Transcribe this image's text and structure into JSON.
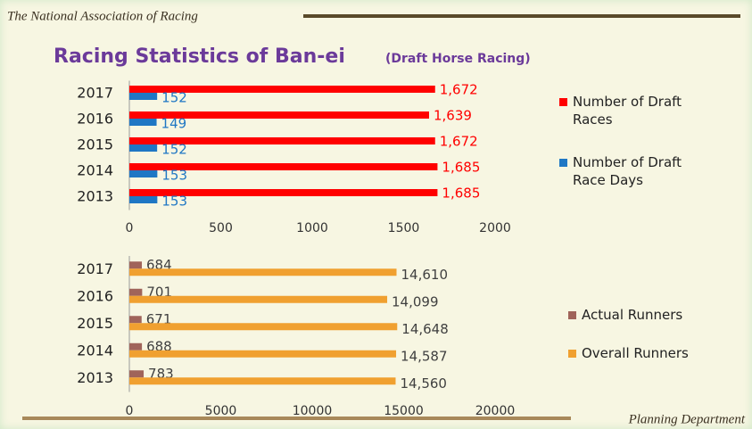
{
  "header": "The National Association of Racing",
  "title": "Racing Statistics of Ban-ei",
  "subtitle": "(Draft Horse Racing)",
  "footer": "Planning Department",
  "chart_data": [
    {
      "type": "bar",
      "orientation": "horizontal",
      "categories": [
        "2017",
        "2016",
        "2015",
        "2014",
        "2013"
      ],
      "series": [
        {
          "name": "Number of Draft Races",
          "color": "#ff0000",
          "label_color": "#ff0000",
          "values": [
            1672,
            1639,
            1672,
            1685,
            1685
          ],
          "value_labels": [
            "1,672",
            "1,639",
            "1,672",
            "1,685",
            "1,685"
          ]
        },
        {
          "name": "Number of Draft Race Days",
          "color": "#1f77c4",
          "label_color": "#1f77c4",
          "values": [
            152,
            149,
            152,
            153,
            153
          ]
        }
      ],
      "xlim": [
        0,
        2000
      ],
      "xticks": [
        0,
        500,
        1000,
        1500,
        2000
      ],
      "grid": false
    },
    {
      "type": "bar",
      "orientation": "horizontal",
      "categories": [
        "2017",
        "2016",
        "2015",
        "2014",
        "2013"
      ],
      "series": [
        {
          "name": "Actual Runners",
          "color": "#a0645a",
          "label_color": "#404040",
          "values": [
            684,
            701,
            671,
            688,
            783
          ]
        },
        {
          "name": "Overall Runners",
          "color": "#f0a030",
          "label_color": "#404040",
          "values": [
            14610,
            14099,
            14648,
            14587,
            14560
          ],
          "value_labels": [
            "14,610",
            "14,099",
            "14,648",
            "14,587",
            "14,560"
          ]
        }
      ],
      "xlim": [
        0,
        20000
      ],
      "xticks": [
        0,
        5000,
        10000,
        15000,
        20000
      ],
      "grid": false
    }
  ]
}
